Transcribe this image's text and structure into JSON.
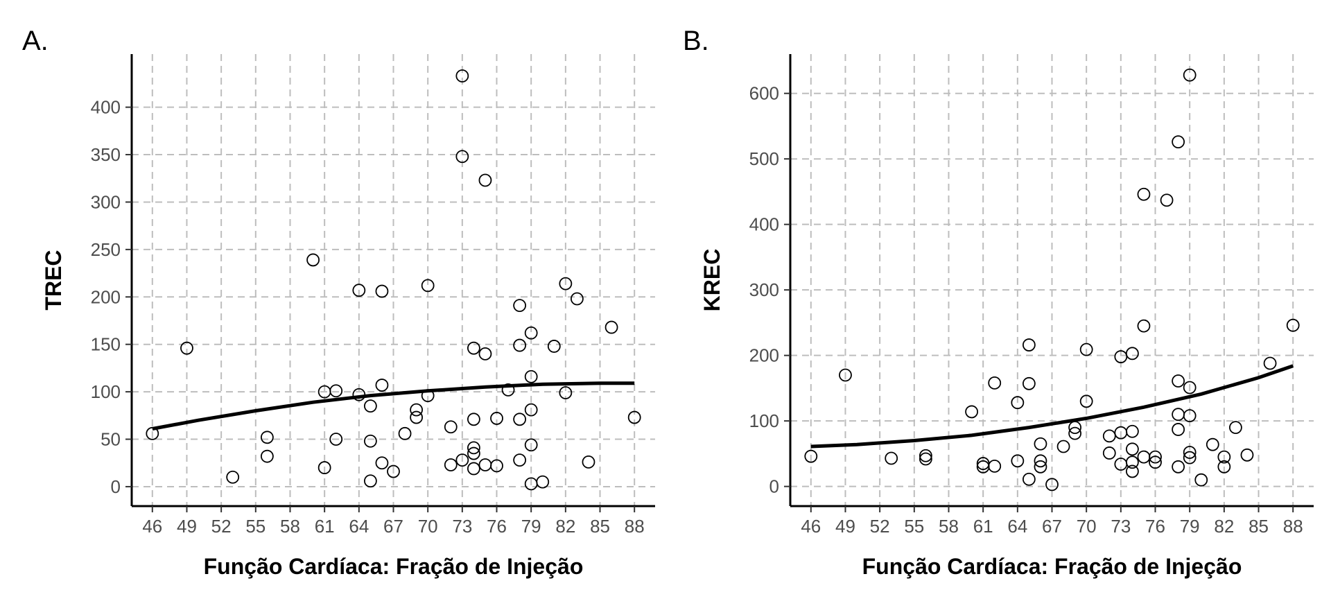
{
  "chart_data": [
    {
      "panel": "A.",
      "type": "scatter",
      "xlabel": "Função Cardíaca: Fração de Injeção",
      "ylabel": "TREC",
      "xlim": [
        44.2,
        89.8
      ],
      "ylim": [
        -20.5,
        456
      ],
      "x_ticks": [
        "46",
        "49",
        "52",
        "55",
        "58",
        "61",
        "64",
        "67",
        "70",
        "73",
        "76",
        "79",
        "82",
        "85",
        "88"
      ],
      "y_ticks": [
        "0",
        "50",
        "100",
        "150",
        "200",
        "250",
        "300",
        "350",
        "400"
      ],
      "grid": true,
      "points": [
        {
          "x": 46,
          "y": 56
        },
        {
          "x": 49,
          "y": 146
        },
        {
          "x": 53,
          "y": 10
        },
        {
          "x": 56,
          "y": 52
        },
        {
          "x": 56,
          "y": 32
        },
        {
          "x": 60,
          "y": 239
        },
        {
          "x": 61,
          "y": 100
        },
        {
          "x": 61,
          "y": 20
        },
        {
          "x": 62,
          "y": 101
        },
        {
          "x": 62,
          "y": 50
        },
        {
          "x": 64,
          "y": 207
        },
        {
          "x": 64,
          "y": 97
        },
        {
          "x": 65,
          "y": 85
        },
        {
          "x": 65,
          "y": 48
        },
        {
          "x": 65,
          "y": 6
        },
        {
          "x": 66,
          "y": 206
        },
        {
          "x": 66,
          "y": 107
        },
        {
          "x": 66,
          "y": 25
        },
        {
          "x": 67,
          "y": 16
        },
        {
          "x": 68,
          "y": 56
        },
        {
          "x": 69,
          "y": 81
        },
        {
          "x": 69,
          "y": 73
        },
        {
          "x": 70,
          "y": 212
        },
        {
          "x": 70,
          "y": 96
        },
        {
          "x": 72,
          "y": 63
        },
        {
          "x": 72,
          "y": 23
        },
        {
          "x": 73,
          "y": 433
        },
        {
          "x": 73,
          "y": 348
        },
        {
          "x": 73,
          "y": 28
        },
        {
          "x": 74,
          "y": 146
        },
        {
          "x": 74,
          "y": 71
        },
        {
          "x": 74,
          "y": 41
        },
        {
          "x": 74,
          "y": 35
        },
        {
          "x": 74,
          "y": 19
        },
        {
          "x": 75,
          "y": 323
        },
        {
          "x": 75,
          "y": 140
        },
        {
          "x": 75,
          "y": 23
        },
        {
          "x": 76,
          "y": 72
        },
        {
          "x": 76,
          "y": 22
        },
        {
          "x": 77,
          "y": 102
        },
        {
          "x": 78,
          "y": 191
        },
        {
          "x": 78,
          "y": 149
        },
        {
          "x": 78,
          "y": 71
        },
        {
          "x": 78,
          "y": 28
        },
        {
          "x": 79,
          "y": 162
        },
        {
          "x": 79,
          "y": 116
        },
        {
          "x": 79,
          "y": 81
        },
        {
          "x": 79,
          "y": 44
        },
        {
          "x": 79,
          "y": 3
        },
        {
          "x": 80,
          "y": 5
        },
        {
          "x": 81,
          "y": 148
        },
        {
          "x": 82,
          "y": 214
        },
        {
          "x": 82,
          "y": 99
        },
        {
          "x": 83,
          "y": 198
        },
        {
          "x": 84,
          "y": 26
        },
        {
          "x": 86,
          "y": 168
        },
        {
          "x": 88,
          "y": 73
        }
      ],
      "fit_line": [
        {
          "x": 46,
          "y": 61
        },
        {
          "x": 50,
          "y": 70
        },
        {
          "x": 55,
          "y": 80
        },
        {
          "x": 60,
          "y": 89
        },
        {
          "x": 65,
          "y": 96
        },
        {
          "x": 70,
          "y": 101
        },
        {
          "x": 75,
          "y": 105
        },
        {
          "x": 80,
          "y": 108
        },
        {
          "x": 85,
          "y": 109
        },
        {
          "x": 88,
          "y": 109
        }
      ]
    },
    {
      "panel": "B.",
      "type": "scatter",
      "xlabel": "Função Cardíaca: Fração de Injeção",
      "ylabel": "KREC",
      "xlim": [
        44.2,
        89.8
      ],
      "ylim": [
        -30,
        660
      ],
      "x_ticks": [
        "46",
        "49",
        "52",
        "55",
        "58",
        "61",
        "64",
        "67",
        "70",
        "73",
        "76",
        "79",
        "82",
        "85",
        "88"
      ],
      "y_ticks": [
        "0",
        "100",
        "200",
        "300",
        "400",
        "500",
        "600"
      ],
      "grid": true,
      "points": [
        {
          "x": 46,
          "y": 46
        },
        {
          "x": 49,
          "y": 170
        },
        {
          "x": 53,
          "y": 43
        },
        {
          "x": 56,
          "y": 47
        },
        {
          "x": 56,
          "y": 42
        },
        {
          "x": 60,
          "y": 114
        },
        {
          "x": 61,
          "y": 35
        },
        {
          "x": 61,
          "y": 30
        },
        {
          "x": 62,
          "y": 158
        },
        {
          "x": 62,
          "y": 31
        },
        {
          "x": 64,
          "y": 128
        },
        {
          "x": 64,
          "y": 39
        },
        {
          "x": 65,
          "y": 216
        },
        {
          "x": 65,
          "y": 157
        },
        {
          "x": 65,
          "y": 11
        },
        {
          "x": 66,
          "y": 65
        },
        {
          "x": 66,
          "y": 39
        },
        {
          "x": 66,
          "y": 30
        },
        {
          "x": 67,
          "y": 3
        },
        {
          "x": 68,
          "y": 61
        },
        {
          "x": 69,
          "y": 90
        },
        {
          "x": 69,
          "y": 81
        },
        {
          "x": 70,
          "y": 209
        },
        {
          "x": 70,
          "y": 130
        },
        {
          "x": 72,
          "y": 77
        },
        {
          "x": 72,
          "y": 51
        },
        {
          "x": 73,
          "y": 198
        },
        {
          "x": 73,
          "y": 82
        },
        {
          "x": 73,
          "y": 34
        },
        {
          "x": 74,
          "y": 203
        },
        {
          "x": 74,
          "y": 84
        },
        {
          "x": 74,
          "y": 57
        },
        {
          "x": 74,
          "y": 37
        },
        {
          "x": 74,
          "y": 23
        },
        {
          "x": 75,
          "y": 446
        },
        {
          "x": 75,
          "y": 245
        },
        {
          "x": 75,
          "y": 45
        },
        {
          "x": 76,
          "y": 45
        },
        {
          "x": 76,
          "y": 37
        },
        {
          "x": 77,
          "y": 437
        },
        {
          "x": 78,
          "y": 526
        },
        {
          "x": 78,
          "y": 161
        },
        {
          "x": 78,
          "y": 110
        },
        {
          "x": 78,
          "y": 87
        },
        {
          "x": 78,
          "y": 30
        },
        {
          "x": 79,
          "y": 628
        },
        {
          "x": 79,
          "y": 151
        },
        {
          "x": 79,
          "y": 108
        },
        {
          "x": 79,
          "y": 52
        },
        {
          "x": 79,
          "y": 44
        },
        {
          "x": 80,
          "y": 10
        },
        {
          "x": 81,
          "y": 64
        },
        {
          "x": 82,
          "y": 45
        },
        {
          "x": 82,
          "y": 30
        },
        {
          "x": 83,
          "y": 90
        },
        {
          "x": 84,
          "y": 48
        },
        {
          "x": 86,
          "y": 188
        },
        {
          "x": 88,
          "y": 246
        }
      ],
      "fit_line": [
        {
          "x": 46,
          "y": 61
        },
        {
          "x": 50,
          "y": 64
        },
        {
          "x": 55,
          "y": 70
        },
        {
          "x": 60,
          "y": 78
        },
        {
          "x": 65,
          "y": 90
        },
        {
          "x": 70,
          "y": 104
        },
        {
          "x": 75,
          "y": 121
        },
        {
          "x": 80,
          "y": 141
        },
        {
          "x": 85,
          "y": 166
        },
        {
          "x": 88,
          "y": 184
        }
      ]
    }
  ]
}
